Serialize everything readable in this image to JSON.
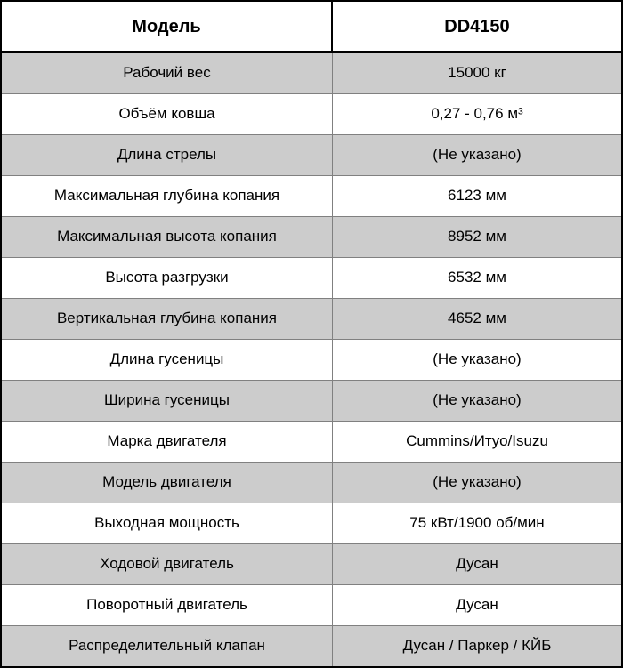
{
  "table": {
    "header": {
      "param": "Модель",
      "value": "DD4150"
    },
    "rows": [
      {
        "param": "Рабочий вес",
        "value": "15000 кг"
      },
      {
        "param": "Объём ковша",
        "value": "0,27 - 0,76 м³"
      },
      {
        "param": "Длина стрелы",
        "value": "(Не указано)"
      },
      {
        "param": "Максимальная глубина копания",
        "value": "6123 мм"
      },
      {
        "param": "Максимальная высота копания",
        "value": "8952 мм"
      },
      {
        "param": "Высота разгрузки",
        "value": "6532 мм"
      },
      {
        "param": "Вертикальная глубина копания",
        "value": "4652 мм"
      },
      {
        "param": "Длина гусеницы",
        "value": "(Не указано)"
      },
      {
        "param": "Ширина гусеницы",
        "value": "(Не указано)"
      },
      {
        "param": "Марка двигателя",
        "value": "Cummins/Итуо/Isuzu"
      },
      {
        "param": "Модель двигателя",
        "value": "(Не указано)"
      },
      {
        "param": "Выходная мощность",
        "value": "75 кВт/1900 об/мин"
      },
      {
        "param": "Ходовой двигатель",
        "value": "Дусан"
      },
      {
        "param": "Поворотный двигатель",
        "value": "Дусан"
      },
      {
        "param": "Распределительный клапан",
        "value": "Дусан / Паркер / КЙБ"
      }
    ],
    "colors": {
      "row_bg": "#ffffff",
      "row_alt_bg": "#cccccc",
      "border_outer": "#000000",
      "border_inner": "#808080",
      "text": "#000000"
    }
  }
}
